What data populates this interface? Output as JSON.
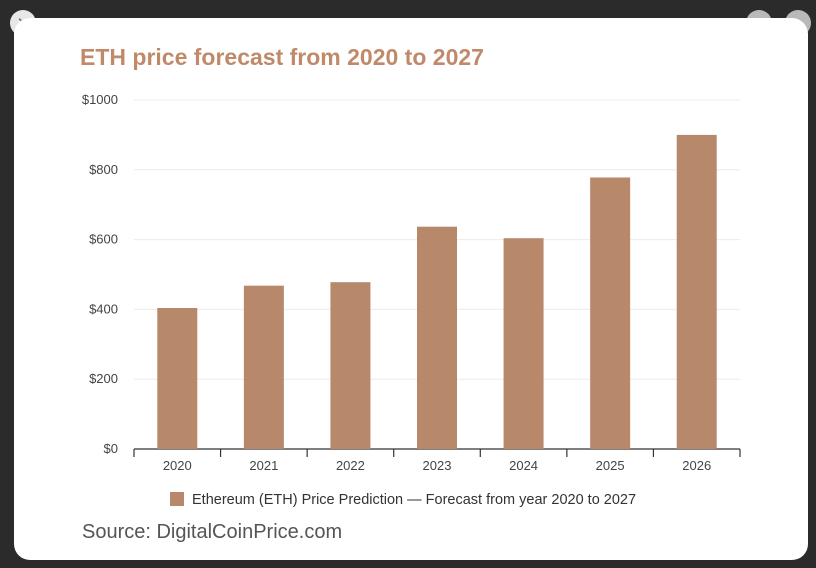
{
  "controls": {
    "close_icon": "✕",
    "prev_icon": "‹",
    "next_icon": "›"
  },
  "colors": {
    "bar": "#b8886b",
    "title": "#c08a6a",
    "grid": "#ececec",
    "axis": "#333333"
  },
  "source": "Source: DigitalCoinPrice.com",
  "chart_data": {
    "type": "bar",
    "title": "ETH price forecast from 2020 to 2027",
    "categories": [
      "2020",
      "2021",
      "2022",
      "2023",
      "2024",
      "2025",
      "2026"
    ],
    "series": [
      {
        "name": "Ethereum (ETH) Price Prediction — Forecast from year 2020 to 2027",
        "values": [
          404,
          468,
          478,
          637,
          604,
          778,
          900
        ]
      }
    ],
    "yticks": [
      0,
      200,
      400,
      600,
      800,
      1000
    ],
    "ytick_labels": [
      "$0",
      "$200",
      "$400",
      "$600",
      "$800",
      "$1000"
    ],
    "ylim": [
      0,
      1000
    ],
    "xlabel": "",
    "ylabel": "",
    "grid": true,
    "legend": "bottom"
  }
}
